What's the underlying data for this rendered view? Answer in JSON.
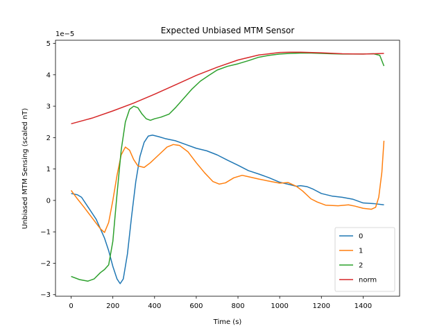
{
  "chart_data": {
    "type": "line",
    "title": "Expected Unbiased MTM Sensor",
    "xlabel": "Time (s)",
    "ylabel": "Unbiased MTM Sensing (scaled nT)",
    "offset_text": "1e−5",
    "xlim": [
      -75,
      1575
    ],
    "ylim": [
      -3.05,
      5.1
    ],
    "x_ticks": [
      0,
      200,
      400,
      600,
      800,
      1000,
      1200,
      1400
    ],
    "y_ticks": [
      -3,
      -2,
      -1,
      0,
      1,
      2,
      3,
      4,
      5
    ],
    "y_tick_labels": [
      "−3",
      "−2",
      "−1",
      "0",
      "1",
      "2",
      "3",
      "4",
      "5"
    ],
    "y_scale_note": "values shown in units of 1e-5",
    "grid": false,
    "legend_position": "lower right",
    "series": [
      {
        "name": "0",
        "color": "#1f77b4",
        "points": [
          [
            0,
            0.22
          ],
          [
            30,
            0.18
          ],
          [
            50,
            0.1
          ],
          [
            80,
            -0.2
          ],
          [
            120,
            -0.6
          ],
          [
            160,
            -1.2
          ],
          [
            180,
            -1.6
          ],
          [
            200,
            -2.1
          ],
          [
            220,
            -2.5
          ],
          [
            235,
            -2.65
          ],
          [
            250,
            -2.5
          ],
          [
            270,
            -1.7
          ],
          [
            290,
            -0.5
          ],
          [
            310,
            0.6
          ],
          [
            330,
            1.4
          ],
          [
            350,
            1.85
          ],
          [
            370,
            2.05
          ],
          [
            390,
            2.08
          ],
          [
            420,
            2.03
          ],
          [
            450,
            1.97
          ],
          [
            500,
            1.9
          ],
          [
            550,
            1.78
          ],
          [
            600,
            1.66
          ],
          [
            650,
            1.58
          ],
          [
            700,
            1.45
          ],
          [
            750,
            1.28
          ],
          [
            800,
            1.12
          ],
          [
            850,
            0.95
          ],
          [
            900,
            0.84
          ],
          [
            950,
            0.72
          ],
          [
            1000,
            0.58
          ],
          [
            1050,
            0.5
          ],
          [
            1080,
            0.45
          ],
          [
            1100,
            0.47
          ],
          [
            1130,
            0.44
          ],
          [
            1160,
            0.36
          ],
          [
            1200,
            0.22
          ],
          [
            1250,
            0.14
          ],
          [
            1300,
            0.1
          ],
          [
            1350,
            0.04
          ],
          [
            1400,
            -0.08
          ],
          [
            1450,
            -0.1
          ],
          [
            1500,
            -0.14
          ]
        ]
      },
      {
        "name": "1",
        "color": "#ff7f0e",
        "points": [
          [
            0,
            0.32
          ],
          [
            30,
            0.05
          ],
          [
            60,
            -0.2
          ],
          [
            100,
            -0.55
          ],
          [
            140,
            -0.9
          ],
          [
            160,
            -1.02
          ],
          [
            180,
            -0.7
          ],
          [
            200,
            0.0
          ],
          [
            220,
            0.8
          ],
          [
            240,
            1.45
          ],
          [
            260,
            1.7
          ],
          [
            280,
            1.6
          ],
          [
            300,
            1.3
          ],
          [
            320,
            1.1
          ],
          [
            350,
            1.05
          ],
          [
            380,
            1.2
          ],
          [
            420,
            1.45
          ],
          [
            460,
            1.7
          ],
          [
            490,
            1.78
          ],
          [
            520,
            1.75
          ],
          [
            560,
            1.55
          ],
          [
            600,
            1.2
          ],
          [
            640,
            0.88
          ],
          [
            680,
            0.6
          ],
          [
            710,
            0.52
          ],
          [
            740,
            0.56
          ],
          [
            780,
            0.72
          ],
          [
            820,
            0.8
          ],
          [
            860,
            0.74
          ],
          [
            900,
            0.68
          ],
          [
            960,
            0.6
          ],
          [
            1000,
            0.55
          ],
          [
            1040,
            0.57
          ],
          [
            1080,
            0.45
          ],
          [
            1110,
            0.3
          ],
          [
            1150,
            0.05
          ],
          [
            1180,
            -0.05
          ],
          [
            1220,
            -0.15
          ],
          [
            1280,
            -0.17
          ],
          [
            1330,
            -0.14
          ],
          [
            1360,
            -0.18
          ],
          [
            1400,
            -0.25
          ],
          [
            1440,
            -0.28
          ],
          [
            1460,
            -0.22
          ],
          [
            1475,
            0.1
          ],
          [
            1490,
            0.9
          ],
          [
            1500,
            1.9
          ]
        ]
      },
      {
        "name": "2",
        "color": "#2ca02c",
        "points": [
          [
            0,
            -2.42
          ],
          [
            40,
            -2.52
          ],
          [
            80,
            -2.57
          ],
          [
            110,
            -2.5
          ],
          [
            140,
            -2.3
          ],
          [
            160,
            -2.2
          ],
          [
            180,
            -2.05
          ],
          [
            200,
            -1.3
          ],
          [
            220,
            0.2
          ],
          [
            240,
            1.6
          ],
          [
            260,
            2.5
          ],
          [
            280,
            2.9
          ],
          [
            300,
            3.0
          ],
          [
            320,
            2.95
          ],
          [
            340,
            2.75
          ],
          [
            360,
            2.6
          ],
          [
            380,
            2.55
          ],
          [
            400,
            2.6
          ],
          [
            430,
            2.65
          ],
          [
            470,
            2.75
          ],
          [
            500,
            2.95
          ],
          [
            540,
            3.25
          ],
          [
            580,
            3.55
          ],
          [
            620,
            3.8
          ],
          [
            660,
            3.98
          ],
          [
            700,
            4.15
          ],
          [
            750,
            4.27
          ],
          [
            800,
            4.35
          ],
          [
            850,
            4.45
          ],
          [
            900,
            4.56
          ],
          [
            950,
            4.62
          ],
          [
            1000,
            4.66
          ],
          [
            1050,
            4.68
          ],
          [
            1100,
            4.69
          ],
          [
            1150,
            4.69
          ],
          [
            1200,
            4.68
          ],
          [
            1250,
            4.67
          ],
          [
            1300,
            4.66
          ],
          [
            1350,
            4.66
          ],
          [
            1400,
            4.66
          ],
          [
            1450,
            4.67
          ],
          [
            1480,
            4.62
          ],
          [
            1500,
            4.28
          ]
        ]
      },
      {
        "name": "norm",
        "color": "#d62728",
        "points": [
          [
            0,
            2.44
          ],
          [
            100,
            2.62
          ],
          [
            200,
            2.85
          ],
          [
            300,
            3.1
          ],
          [
            400,
            3.38
          ],
          [
            500,
            3.68
          ],
          [
            600,
            3.98
          ],
          [
            700,
            4.24
          ],
          [
            800,
            4.47
          ],
          [
            900,
            4.63
          ],
          [
            1000,
            4.71
          ],
          [
            1050,
            4.72
          ],
          [
            1100,
            4.72
          ],
          [
            1200,
            4.7
          ],
          [
            1300,
            4.67
          ],
          [
            1400,
            4.66
          ],
          [
            1450,
            4.67
          ],
          [
            1500,
            4.68
          ]
        ]
      }
    ]
  }
}
